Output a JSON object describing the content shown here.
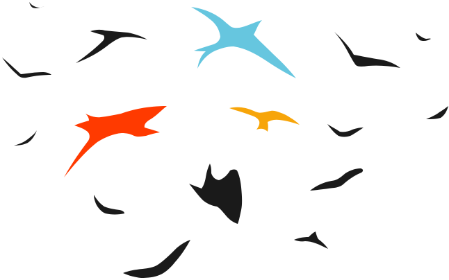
{
  "scene": {
    "background_color": "#ffffff",
    "colors": {
      "black": "#1a1a1a",
      "sky_blue": "#66c6df",
      "red_orange": "#ff3a00",
      "orange": "#f7a50a"
    },
    "icons": [
      "bird-flock-icon",
      "blue-bird-icon",
      "red-bird-icon",
      "orange-bird-icon",
      "black-bird-icon"
    ]
  }
}
